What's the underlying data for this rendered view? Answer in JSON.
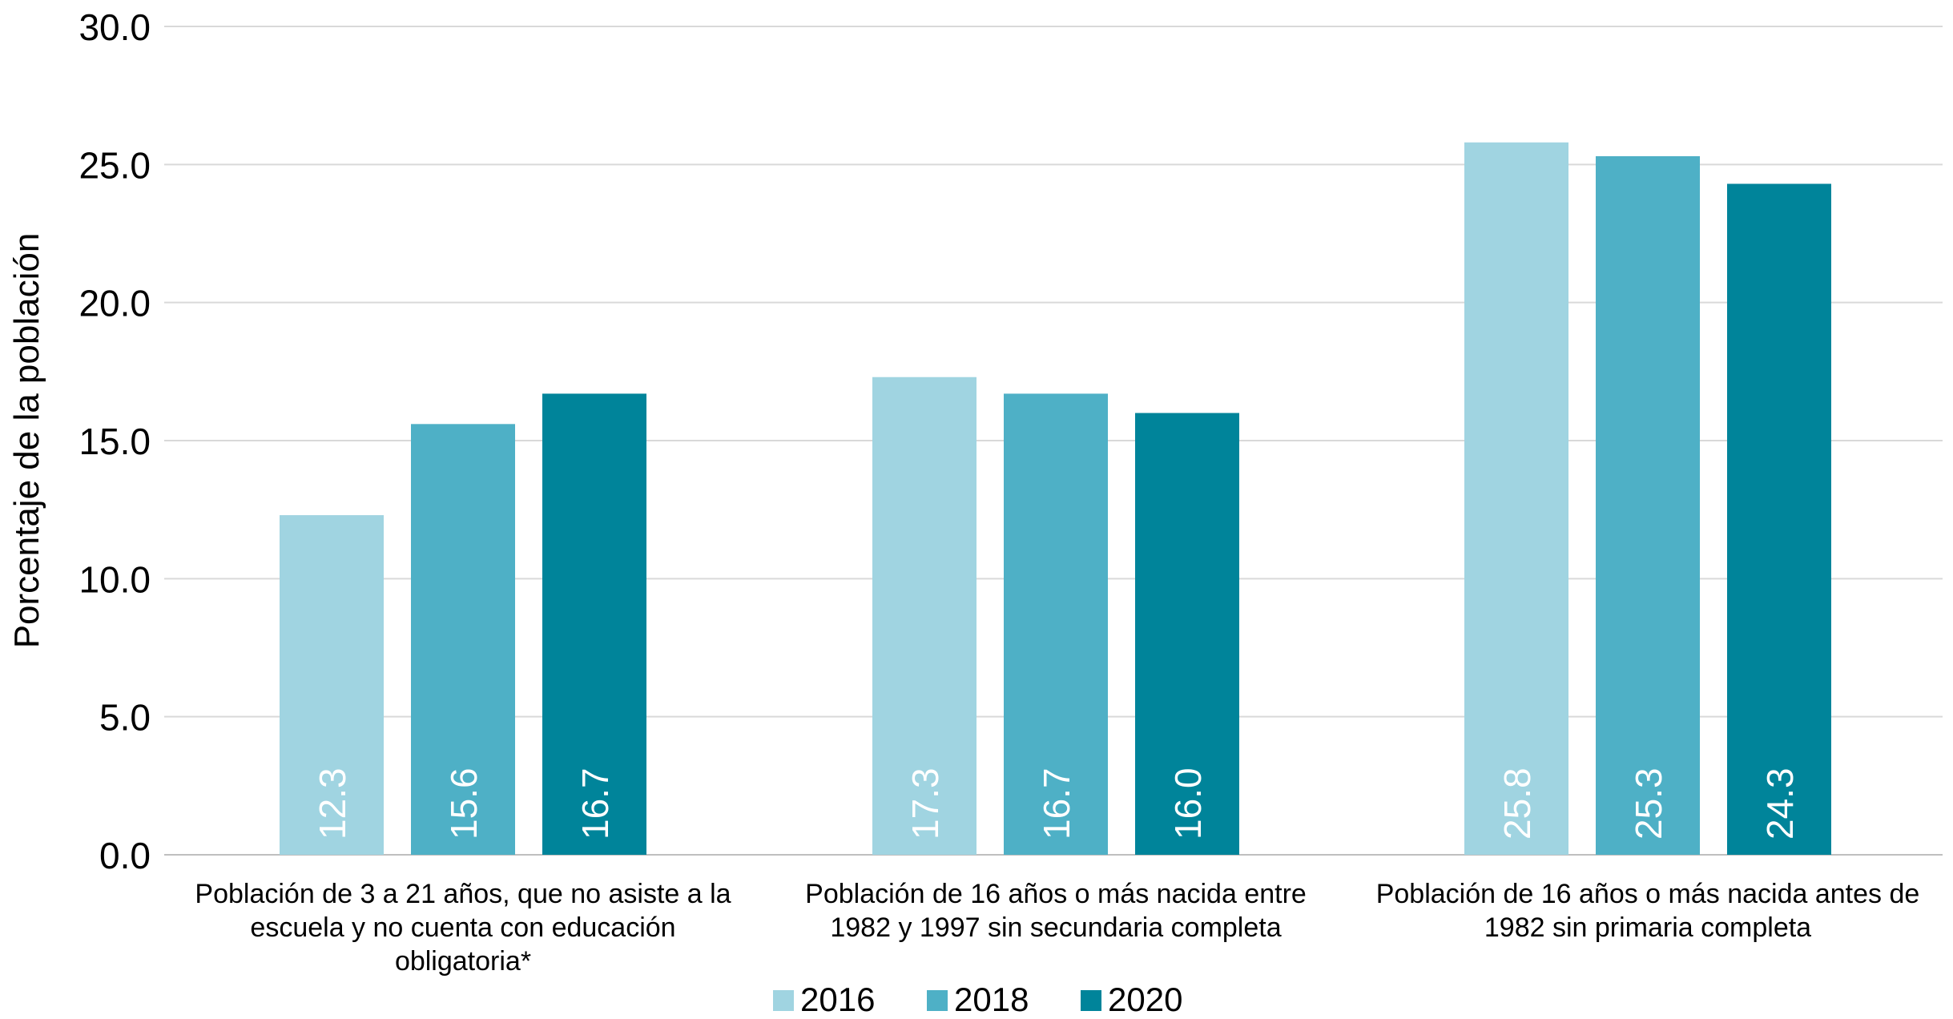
{
  "chart_data": {
    "type": "bar",
    "title": "",
    "xlabel": "",
    "ylabel": "Porcentaje de la población",
    "ylim": [
      0,
      30
    ],
    "y_ticks": [
      "0.0",
      "5.0",
      "10.0",
      "15.0",
      "20.0",
      "25.0",
      "30.0"
    ],
    "grid": true,
    "legend_position": "bottom",
    "categories": [
      [
        "Población de 3 a 21 años, que no asiste a la",
        "escuela y no cuenta con educación",
        "obligatoria*"
      ],
      [
        "Población de 16 años o más nacida entre",
        "1982 y 1997 sin secundaria completa"
      ],
      [
        "Población de 16 años o más nacida antes de",
        "1982 sin primaria completa"
      ]
    ],
    "series": [
      {
        "name": "2016",
        "color": "#a0d4e1",
        "values": [
          12.3,
          17.3,
          25.8
        ],
        "labels": [
          "12.3",
          "17.3",
          "25.8"
        ]
      },
      {
        "name": "2018",
        "color": "#4eb0c6",
        "values": [
          15.6,
          16.7,
          25.3
        ],
        "labels": [
          "15.6",
          "16.7",
          "25.3"
        ]
      },
      {
        "name": "2020",
        "color": "#00849a",
        "values": [
          16.7,
          16.0,
          24.3
        ],
        "labels": [
          "16.7",
          "16.0",
          "24.3"
        ]
      }
    ]
  }
}
